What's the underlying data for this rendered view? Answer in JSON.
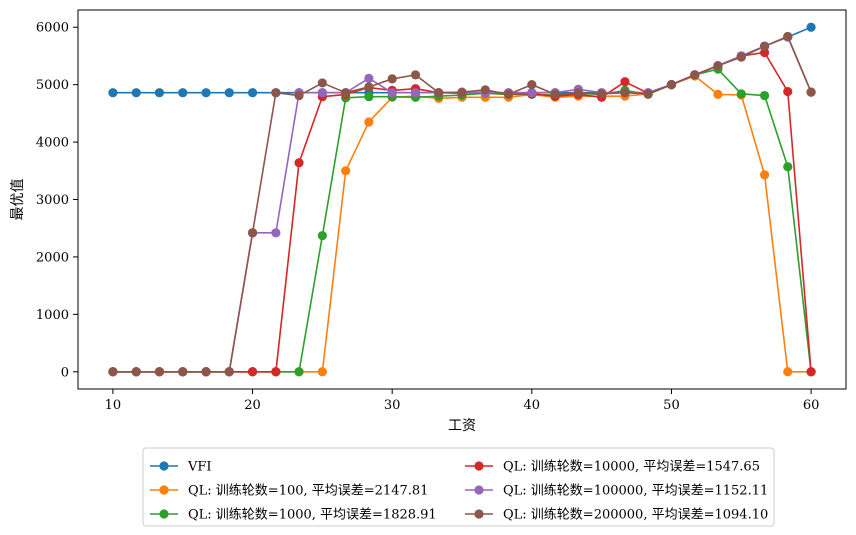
{
  "chart_data": {
    "type": "line",
    "xlabel": "工资",
    "ylabel": "最优值",
    "xlim": [
      7.5,
      62.5
    ],
    "ylim": [
      -300,
      6300
    ],
    "xticks": [
      10,
      20,
      30,
      40,
      50,
      60
    ],
    "yticks": [
      0,
      1000,
      2000,
      3000,
      4000,
      5000,
      6000
    ],
    "grid": false,
    "legend_position": "bottom-center-outside",
    "x": [
      10,
      11.67,
      13.33,
      15,
      16.67,
      18.33,
      20,
      21.67,
      23.33,
      25,
      26.67,
      28.33,
      30,
      31.67,
      33.33,
      35,
      36.67,
      38.33,
      40,
      41.67,
      43.33,
      45,
      46.67,
      48.33,
      50,
      51.67,
      53.33,
      55,
      56.67,
      58.33,
      60
    ],
    "series": [
      {
        "name": "VFI",
        "color": "#1f77b4",
        "values": [
          4860,
          4860,
          4860,
          4860,
          4860,
          4860,
          4860,
          4860,
          4860,
          4860,
          4860,
          4860,
          4860,
          4860,
          4860,
          4860,
          4860,
          4860,
          4860,
          4860,
          4860,
          4860,
          4860,
          4860,
          5000,
          5170,
          5330,
          5500,
          5670,
          5830,
          6000
        ]
      },
      {
        "name": "QL: 训练轮数=100, 平均误差=2147.81",
        "color": "#ff7f0e",
        "values": [
          0,
          0,
          0,
          0,
          0,
          0,
          0,
          0,
          0,
          0,
          3500,
          4350,
          4780,
          4800,
          4760,
          4780,
          4780,
          4780,
          4830,
          4780,
          4800,
          4800,
          4800,
          4840,
          5000,
          5150,
          4830,
          4820,
          3430,
          0,
          0
        ]
      },
      {
        "name": "QL: 训练轮数=1000, 平均误差=1828.91",
        "color": "#2ca02c",
        "values": [
          0,
          0,
          0,
          0,
          0,
          0,
          0,
          0,
          0,
          2370,
          4770,
          4790,
          4790,
          4780,
          4800,
          4820,
          4850,
          4830,
          4830,
          4820,
          4850,
          4830,
          4900,
          4830,
          5000,
          5170,
          5270,
          4840,
          4810,
          3570,
          0
        ]
      },
      {
        "name": "QL: 训练轮数=10000, 平均误差=1547.65",
        "color": "#d62728",
        "values": [
          0,
          0,
          0,
          0,
          0,
          0,
          0,
          0,
          3640,
          4790,
          4830,
          4950,
          4900,
          4930,
          4860,
          4850,
          4870,
          4840,
          4840,
          4800,
          4830,
          4780,
          5050,
          4850,
          5000,
          5170,
          5330,
          5500,
          5560,
          4880,
          0
        ]
      },
      {
        "name": "QL: 训练轮数=100000, 平均误差=1152.11",
        "color": "#9467bd",
        "values": [
          0,
          0,
          0,
          0,
          0,
          0,
          2420,
          2420,
          4860,
          4860,
          4860,
          5110,
          4860,
          4860,
          4860,
          4860,
          4860,
          4860,
          4860,
          4860,
          4920,
          4860,
          4860,
          4860,
          5000,
          5170,
          5330,
          5500,
          5670,
          5830,
          4870
        ]
      },
      {
        "name": "QL: 训练轮数=200000, 平均误差=1094.10",
        "color": "#8c564b",
        "values": [
          0,
          0,
          0,
          0,
          0,
          0,
          2420,
          4860,
          4810,
          5030,
          4860,
          4960,
          5100,
          5170,
          4860,
          4870,
          4910,
          4830,
          5000,
          4830,
          4860,
          4840,
          4860,
          4840,
          5000,
          5170,
          5330,
          5480,
          5670,
          5840,
          4870
        ]
      }
    ]
  }
}
